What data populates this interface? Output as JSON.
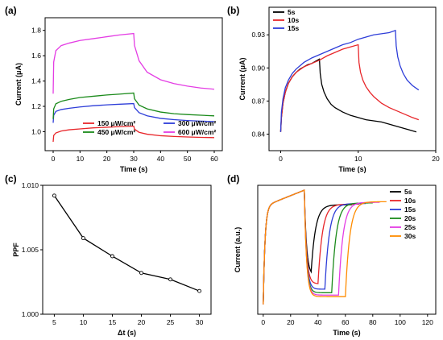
{
  "chart_data": [
    {
      "panel_label": "(a)",
      "type": "line",
      "xlabel": "Time (s)",
      "ylabel": "Current (μA)",
      "xlim": [
        -3,
        63
      ],
      "ylim": [
        0.85,
        1.9
      ],
      "xticks": [
        "0",
        "10",
        "20",
        "30",
        "40",
        "50",
        "60"
      ],
      "yticks": [
        "1.0",
        "1.2",
        "1.4",
        "1.6",
        "1.8"
      ],
      "legend_position": "bottom-right",
      "series": [
        {
          "name": "150 μW/cm²",
          "color": "#e8262a",
          "x": [
            0,
            0.2,
            1,
            3,
            6,
            10,
            15,
            20,
            25,
            30,
            30.3,
            32,
            35,
            40,
            45,
            50,
            55,
            60
          ],
          "y": [
            0.92,
            0.97,
            0.99,
            1.005,
            1.015,
            1.022,
            1.03,
            1.035,
            1.04,
            1.044,
            1.02,
            0.995,
            0.98,
            0.968,
            0.962,
            0.958,
            0.955,
            0.953
          ]
        },
        {
          "name": "300 μW/cm²",
          "color": "#2d3dd8",
          "x": [
            0,
            0.2,
            1,
            3,
            6,
            10,
            15,
            20,
            25,
            30,
            30.3,
            32,
            35,
            40,
            45,
            50,
            55,
            60
          ],
          "y": [
            1.07,
            1.13,
            1.16,
            1.175,
            1.185,
            1.195,
            1.205,
            1.212,
            1.217,
            1.222,
            1.19,
            1.15,
            1.125,
            1.105,
            1.095,
            1.088,
            1.083,
            1.08
          ]
        },
        {
          "name": "450 μW/cm²",
          "color": "#1a8a1a",
          "x": [
            0,
            0.2,
            1,
            3,
            6,
            10,
            15,
            20,
            25,
            30,
            30.3,
            32,
            35,
            40,
            45,
            50,
            55,
            60
          ],
          "y": [
            1.1,
            1.18,
            1.22,
            1.24,
            1.255,
            1.27,
            1.28,
            1.29,
            1.297,
            1.305,
            1.26,
            1.21,
            1.18,
            1.155,
            1.142,
            1.135,
            1.13,
            1.125
          ]
        },
        {
          "name": "600 μW/cm²",
          "color": "#e43de4",
          "x": [
            0,
            0.2,
            1,
            3,
            6,
            10,
            15,
            20,
            25,
            30,
            30.3,
            32,
            35,
            40,
            45,
            50,
            55,
            60
          ],
          "y": [
            1.3,
            1.55,
            1.64,
            1.68,
            1.7,
            1.72,
            1.735,
            1.75,
            1.765,
            1.775,
            1.68,
            1.56,
            1.47,
            1.41,
            1.38,
            1.36,
            1.345,
            1.335
          ]
        }
      ]
    },
    {
      "panel_label": "(b)",
      "type": "line",
      "xlabel": "Time (s)",
      "ylabel": "Current (μA)",
      "xlim": [
        -1.5,
        20
      ],
      "ylim": [
        0.825,
        0.955
      ],
      "xticks": [
        "0",
        "10",
        "20"
      ],
      "yticks": [
        "0.84",
        "0.87",
        "0.90",
        "0.93"
      ],
      "legend_position": "top-left",
      "series": [
        {
          "name": "5s",
          "color": "#000000",
          "x": [
            0,
            0.1,
            0.3,
            0.6,
            1,
            1.5,
            2,
            2.5,
            3,
            3.5,
            4,
            4.5,
            5,
            5.1,
            5.3,
            5.6,
            6,
            6.5,
            7,
            8,
            9,
            10,
            11,
            12,
            13,
            14,
            15,
            16,
            17,
            17.5
          ],
          "y": [
            0.842,
            0.855,
            0.868,
            0.878,
            0.886,
            0.892,
            0.896,
            0.899,
            0.901,
            0.903,
            0.904,
            0.906,
            0.908,
            0.895,
            0.885,
            0.878,
            0.872,
            0.867,
            0.864,
            0.86,
            0.857,
            0.855,
            0.853,
            0.852,
            0.851,
            0.849,
            0.847,
            0.845,
            0.843,
            0.842
          ]
        },
        {
          "name": "10s",
          "color": "#e8262a",
          "x": [
            0,
            0.1,
            0.3,
            0.6,
            1,
            1.5,
            2,
            3,
            4,
            5,
            6,
            7,
            8,
            9,
            10,
            10.1,
            10.3,
            10.6,
            11,
            11.5,
            12,
            13,
            14,
            15,
            16,
            17,
            17.8
          ],
          "y": [
            0.842,
            0.855,
            0.868,
            0.878,
            0.886,
            0.892,
            0.896,
            0.901,
            0.904,
            0.907,
            0.911,
            0.914,
            0.917,
            0.919,
            0.921,
            0.905,
            0.896,
            0.889,
            0.883,
            0.878,
            0.874,
            0.868,
            0.864,
            0.861,
            0.858,
            0.855,
            0.853
          ]
        },
        {
          "name": "15s",
          "color": "#2d3dd8",
          "x": [
            0,
            0.1,
            0.3,
            0.6,
            1,
            1.5,
            2,
            3,
            4,
            5,
            6,
            7,
            8,
            9,
            10,
            11,
            12,
            13,
            14,
            14.8,
            14.9,
            15.1,
            15.4,
            15.8,
            16.3,
            17,
            17.8
          ],
          "y": [
            0.842,
            0.86,
            0.872,
            0.882,
            0.889,
            0.895,
            0.899,
            0.905,
            0.909,
            0.912,
            0.915,
            0.918,
            0.921,
            0.923,
            0.926,
            0.928,
            0.93,
            0.931,
            0.932,
            0.934,
            0.92,
            0.91,
            0.902,
            0.895,
            0.889,
            0.884,
            0.88
          ]
        }
      ]
    },
    {
      "panel_label": "(c)",
      "type": "line",
      "xlabel": "Δt (s)",
      "ylabel": "PPF",
      "xlim": [
        3,
        32
      ],
      "ylim": [
        1.0,
        1.01
      ],
      "xticks": [
        "5",
        "10",
        "15",
        "20",
        "25",
        "30"
      ],
      "yticks": [
        "1.000",
        "1.005",
        "1.010"
      ],
      "series": [
        {
          "color": "#000000",
          "x": [
            5,
            10,
            15,
            20,
            25,
            30
          ],
          "y": [
            1.0092,
            1.0059,
            1.0045,
            1.0032,
            1.0027,
            1.0018
          ]
        }
      ]
    },
    {
      "panel_label": "(d)",
      "type": "line",
      "xlabel": "Time (s)",
      "ylabel": "Current (a.u.)",
      "xlim": [
        -4,
        126
      ],
      "ylim": [
        0,
        1.06
      ],
      "xticks": [
        "0",
        "20",
        "40",
        "60",
        "80",
        "100",
        "120"
      ],
      "yticks": [],
      "legend_position": "top-right",
      "series": [
        {
          "name": "5s",
          "color": "#000000",
          "interval": 5
        },
        {
          "name": "10s",
          "color": "#e8262a",
          "interval": 10
        },
        {
          "name": "15s",
          "color": "#2d3dd8",
          "interval": 15
        },
        {
          "name": "20s",
          "color": "#1a8a1a",
          "interval": 20
        },
        {
          "name": "25s",
          "color": "#e43de4",
          "interval": 25
        },
        {
          "name": "30s",
          "color": "#ff8c00",
          "interval": 30
        }
      ]
    }
  ]
}
